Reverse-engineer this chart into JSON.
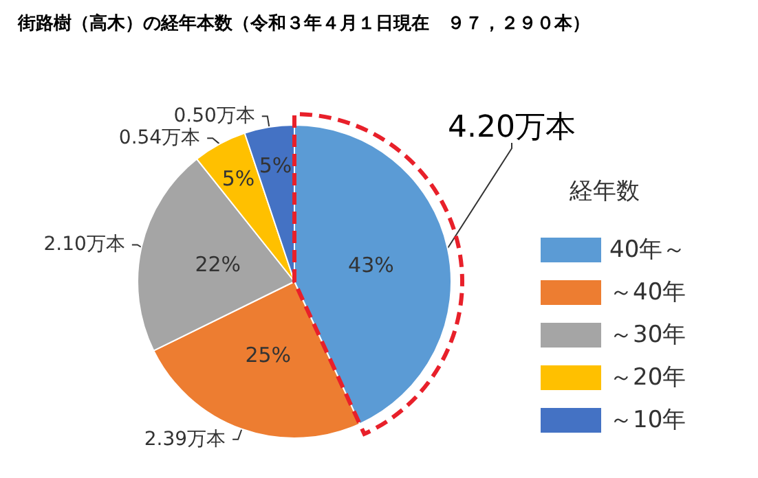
{
  "chart_data": {
    "type": "pie",
    "title": "街路樹（高木）の経年本数（令和３年４月１日現在　９７，２９０本）",
    "legend_title": "経年数",
    "legend": "right",
    "categories": [
      "40年～",
      "～40年",
      "～30年",
      "～20年",
      "～10年"
    ],
    "values": [
      4.2,
      2.39,
      2.1,
      0.54,
      0.5
    ],
    "colors": [
      "#5b9bd5",
      "#ed7d31",
      "#a5a5a5",
      "#ffc000",
      "#4472c4"
    ],
    "value_labels": [
      "4.20万本",
      "2.39万本",
      "2.10万本",
      "0.54万本",
      "0.50万本"
    ],
    "annotations": [
      {
        "text": "43%",
        "x": "40年～"
      },
      {
        "text": "25%",
        "x": "～40年"
      },
      {
        "text": "22%",
        "x": "～30年"
      },
      {
        "text": "5%",
        "x": "～20年"
      },
      {
        "text": "5%",
        "x": "～10年"
      }
    ]
  }
}
